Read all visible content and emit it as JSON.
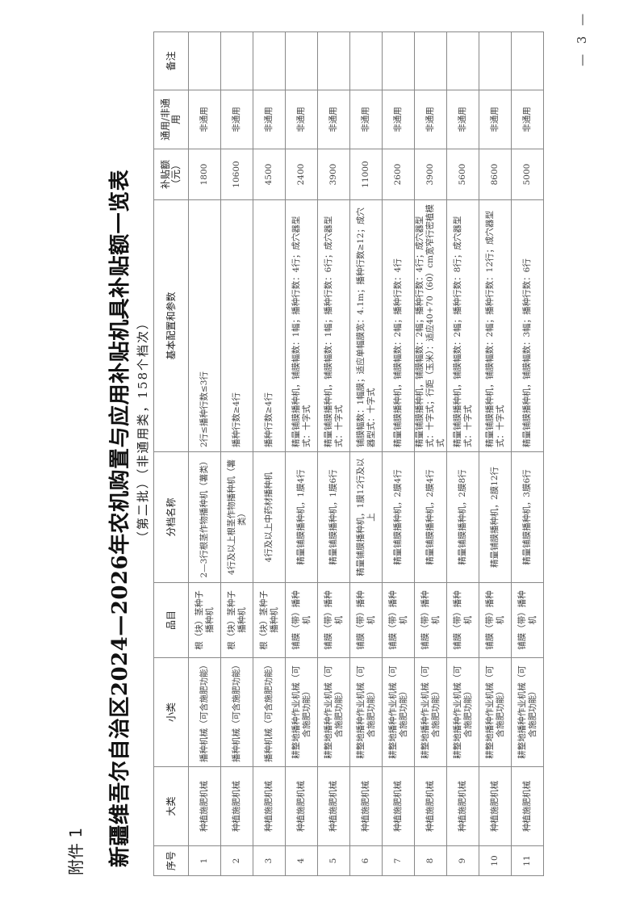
{
  "attachment_label": "附件 1",
  "title": "新疆维吾尔自治区2024—2026年农机购置与应用补贴机具补贴额一览表",
  "subtitle": "（第二批）（非通用类，158个档次）",
  "page_number": "— 3 —",
  "table": {
    "headers": [
      "序号",
      "大类",
      "小类",
      "品目",
      "分档名称",
      "基本配置和参数",
      "补贴额（元）",
      "通用/非通用",
      "备注"
    ],
    "rows": [
      [
        "1",
        "种植施肥机械",
        "播种机械（可含施肥功能）",
        "根（块）茎种子播种机",
        "2—3行根茎作物播种机（薯类）",
        "2行≤播种行数≤3行",
        "1800",
        "非通用",
        ""
      ],
      [
        "2",
        "种植施肥机械",
        "播种机械（可含施肥功能）",
        "根（块）茎种子播种机",
        "4行及以上根茎作物播种机（薯类）",
        "播种行数≥4行",
        "10600",
        "非通用",
        ""
      ],
      [
        "3",
        "种植施肥机械",
        "播种机械（可含施肥功能）",
        "根（块）茎种子播种机",
        "4行及以上中药材播种机",
        "播种行数≥4行",
        "4500",
        "非通用",
        ""
      ],
      [
        "4",
        "种植施肥机械",
        "耕整地播种作业机械（可含施肥功能）",
        "铺膜（带）播种机",
        "精量铺膜播种机，1膜4行",
        "精量铺膜播种机，铺膜幅数：1幅；播种行数：4行；成穴器型式：十字式",
        "2400",
        "非通用",
        ""
      ],
      [
        "5",
        "种植施肥机械",
        "耕整地播种作业机械（可含施肥功能）",
        "铺膜（带）播种机",
        "精量铺膜播种机，1膜6行",
        "精量铺膜播种机，铺膜幅数：1幅；播种行数：6行；成穴器型式：十字式",
        "3900",
        "非通用",
        ""
      ],
      [
        "6",
        "种植施肥机械",
        "耕整地播种作业机械（可含施肥功能）",
        "铺膜（带）播种机",
        "精量铺膜播种机，1膜12行及以上",
        "铺膜幅数：1幅膜；适应单幅膜宽：4.1m；播种行数≥12；成穴器型式：十字式",
        "11000",
        "非通用",
        ""
      ],
      [
        "7",
        "种植施肥机械",
        "耕整地播种作业机械（可含施肥功能）",
        "铺膜（带）播种机",
        "精量铺膜播种机，2膜4行",
        "精量铺膜播种机，铺膜幅数：2幅；播种行数：4行",
        "2600",
        "非通用",
        ""
      ],
      [
        "8",
        "种植施肥机械",
        "耕整地播种作业机械（可含施肥功能）",
        "铺膜（带）播种机",
        "精量铺膜播种机，2膜4行",
        "精量铺膜播种机，铺膜幅数：2幅；播种行数：4行；成穴器型式：十字式；行距（玉米）：适应40+70（60）cm宽窄行密植模式",
        "3900",
        "非通用",
        ""
      ],
      [
        "9",
        "种植施肥机械",
        "耕整地播种作业机械（可含施肥功能）",
        "铺膜（带）播种机",
        "精量铺膜播种机，2膜8行",
        "精量铺膜播种机，铺膜幅数：2幅；播种行数：8行；成穴器型式：十字式",
        "5600",
        "非通用",
        ""
      ],
      [
        "10",
        "种植施肥机械",
        "耕整地播种作业机械（可含施肥功能）",
        "铺膜（带）播种机",
        "精量铺膜播种机，2膜12行",
        "精量铺膜播种机，铺膜幅数：2幅；播种行数：12行；成穴器型式：十字式",
        "8600",
        "非通用",
        ""
      ],
      [
        "11",
        "种植施肥机械",
        "耕整地播种作业机械（可含施肥功能）",
        "铺膜（带）播种机",
        "精量铺膜播种机，3膜6行",
        "精量铺膜播种机，铺膜幅数：3幅；播种行数：6行",
        "5000",
        "非通用",
        ""
      ]
    ]
  }
}
